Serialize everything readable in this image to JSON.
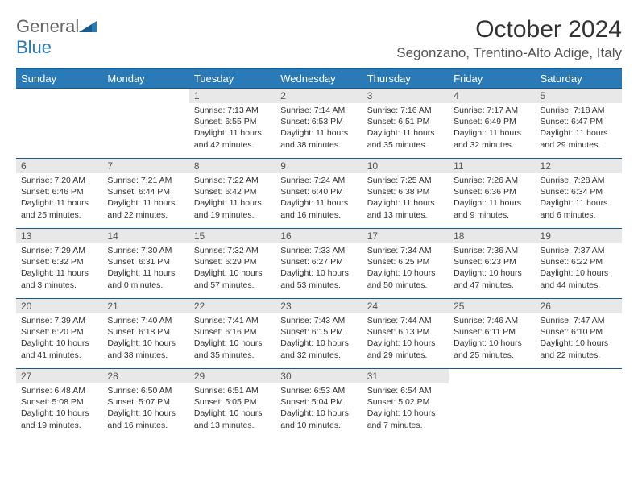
{
  "logo": {
    "word1": "General",
    "word2": "Blue"
  },
  "title": "October 2024",
  "location": "Segonzano, Trentino-Alto Adige, Italy",
  "colors": {
    "header_bg": "#2a7ab8",
    "header_border": "#1a5a8a",
    "daynum_bg": "#e8e8e8",
    "text": "#333333",
    "logo_gray": "#666666",
    "logo_blue": "#2a7ab8"
  },
  "weekdays": [
    "Sunday",
    "Monday",
    "Tuesday",
    "Wednesday",
    "Thursday",
    "Friday",
    "Saturday"
  ],
  "weeks": [
    [
      {
        "empty": true
      },
      {
        "empty": true
      },
      {
        "n": "1",
        "sr": "7:13 AM",
        "ss": "6:55 PM",
        "dl": "11 hours and 42 minutes."
      },
      {
        "n": "2",
        "sr": "7:14 AM",
        "ss": "6:53 PM",
        "dl": "11 hours and 38 minutes."
      },
      {
        "n": "3",
        "sr": "7:16 AM",
        "ss": "6:51 PM",
        "dl": "11 hours and 35 minutes."
      },
      {
        "n": "4",
        "sr": "7:17 AM",
        "ss": "6:49 PM",
        "dl": "11 hours and 32 minutes."
      },
      {
        "n": "5",
        "sr": "7:18 AM",
        "ss": "6:47 PM",
        "dl": "11 hours and 29 minutes."
      }
    ],
    [
      {
        "n": "6",
        "sr": "7:20 AM",
        "ss": "6:46 PM",
        "dl": "11 hours and 25 minutes."
      },
      {
        "n": "7",
        "sr": "7:21 AM",
        "ss": "6:44 PM",
        "dl": "11 hours and 22 minutes."
      },
      {
        "n": "8",
        "sr": "7:22 AM",
        "ss": "6:42 PM",
        "dl": "11 hours and 19 minutes."
      },
      {
        "n": "9",
        "sr": "7:24 AM",
        "ss": "6:40 PM",
        "dl": "11 hours and 16 minutes."
      },
      {
        "n": "10",
        "sr": "7:25 AM",
        "ss": "6:38 PM",
        "dl": "11 hours and 13 minutes."
      },
      {
        "n": "11",
        "sr": "7:26 AM",
        "ss": "6:36 PM",
        "dl": "11 hours and 9 minutes."
      },
      {
        "n": "12",
        "sr": "7:28 AM",
        "ss": "6:34 PM",
        "dl": "11 hours and 6 minutes."
      }
    ],
    [
      {
        "n": "13",
        "sr": "7:29 AM",
        "ss": "6:32 PM",
        "dl": "11 hours and 3 minutes."
      },
      {
        "n": "14",
        "sr": "7:30 AM",
        "ss": "6:31 PM",
        "dl": "11 hours and 0 minutes."
      },
      {
        "n": "15",
        "sr": "7:32 AM",
        "ss": "6:29 PM",
        "dl": "10 hours and 57 minutes."
      },
      {
        "n": "16",
        "sr": "7:33 AM",
        "ss": "6:27 PM",
        "dl": "10 hours and 53 minutes."
      },
      {
        "n": "17",
        "sr": "7:34 AM",
        "ss": "6:25 PM",
        "dl": "10 hours and 50 minutes."
      },
      {
        "n": "18",
        "sr": "7:36 AM",
        "ss": "6:23 PM",
        "dl": "10 hours and 47 minutes."
      },
      {
        "n": "19",
        "sr": "7:37 AM",
        "ss": "6:22 PM",
        "dl": "10 hours and 44 minutes."
      }
    ],
    [
      {
        "n": "20",
        "sr": "7:39 AM",
        "ss": "6:20 PM",
        "dl": "10 hours and 41 minutes."
      },
      {
        "n": "21",
        "sr": "7:40 AM",
        "ss": "6:18 PM",
        "dl": "10 hours and 38 minutes."
      },
      {
        "n": "22",
        "sr": "7:41 AM",
        "ss": "6:16 PM",
        "dl": "10 hours and 35 minutes."
      },
      {
        "n": "23",
        "sr": "7:43 AM",
        "ss": "6:15 PM",
        "dl": "10 hours and 32 minutes."
      },
      {
        "n": "24",
        "sr": "7:44 AM",
        "ss": "6:13 PM",
        "dl": "10 hours and 29 minutes."
      },
      {
        "n": "25",
        "sr": "7:46 AM",
        "ss": "6:11 PM",
        "dl": "10 hours and 25 minutes."
      },
      {
        "n": "26",
        "sr": "7:47 AM",
        "ss": "6:10 PM",
        "dl": "10 hours and 22 minutes."
      }
    ],
    [
      {
        "n": "27",
        "sr": "6:48 AM",
        "ss": "5:08 PM",
        "dl": "10 hours and 19 minutes."
      },
      {
        "n": "28",
        "sr": "6:50 AM",
        "ss": "5:07 PM",
        "dl": "10 hours and 16 minutes."
      },
      {
        "n": "29",
        "sr": "6:51 AM",
        "ss": "5:05 PM",
        "dl": "10 hours and 13 minutes."
      },
      {
        "n": "30",
        "sr": "6:53 AM",
        "ss": "5:04 PM",
        "dl": "10 hours and 10 minutes."
      },
      {
        "n": "31",
        "sr": "6:54 AM",
        "ss": "5:02 PM",
        "dl": "10 hours and 7 minutes."
      },
      {
        "empty": true
      },
      {
        "empty": true
      }
    ]
  ],
  "labels": {
    "sunrise": "Sunrise:",
    "sunset": "Sunset:",
    "daylight": "Daylight:"
  }
}
